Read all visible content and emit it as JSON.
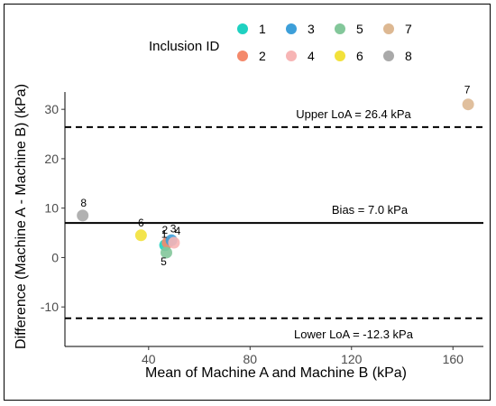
{
  "chart_data": {
    "type": "scatter",
    "title": "",
    "xlabel": "Mean of Machine A and Machine B (kPa)",
    "ylabel": "Difference (Machine A - Machine B) (kPa)",
    "xlim": [
      7,
      172
    ],
    "ylim": [
      -18,
      33.5
    ],
    "x_ticks": [
      40,
      80,
      120,
      160
    ],
    "y_ticks": [
      -10,
      0,
      10,
      20,
      30
    ],
    "grid": false,
    "legend": {
      "title": "Inclusion ID",
      "placement": "top",
      "entries": [
        {
          "id": "1",
          "color": "#1fd1c1"
        },
        {
          "id": "2",
          "color": "#f4896b"
        },
        {
          "id": "3",
          "color": "#3d9fd9"
        },
        {
          "id": "4",
          "color": "#f7b5b5"
        },
        {
          "id": "5",
          "color": "#83c79a"
        },
        {
          "id": "6",
          "color": "#f2e13a"
        },
        {
          "id": "7",
          "color": "#ddb892"
        },
        {
          "id": "8",
          "color": "#a9a9a9"
        }
      ]
    },
    "points": [
      {
        "id": "1",
        "x": 46.5,
        "y": 2.5
      },
      {
        "id": "2",
        "x": 47.5,
        "y": 3.0
      },
      {
        "id": "3",
        "x": 49.0,
        "y": 3.5
      },
      {
        "id": "4",
        "x": 50.0,
        "y": 3.0
      },
      {
        "id": "5",
        "x": 47.0,
        "y": 1.0
      },
      {
        "id": "6",
        "x": 37.0,
        "y": 4.5
      },
      {
        "id": "7",
        "x": 166.0,
        "y": 31.0
      },
      {
        "id": "8",
        "x": 14.0,
        "y": 8.5
      }
    ],
    "reference_lines": [
      {
        "name": "upper-loa",
        "y": 26.4,
        "style": "dashed",
        "label": "Upper LoA = 26.4 kPa"
      },
      {
        "name": "bias",
        "y": 7.0,
        "style": "solid",
        "label": "Bias = 7.0 kPa"
      },
      {
        "name": "lower-loa",
        "y": -12.3,
        "style": "dashed",
        "label": "Lower LoA = -12.3 kPa"
      }
    ]
  }
}
